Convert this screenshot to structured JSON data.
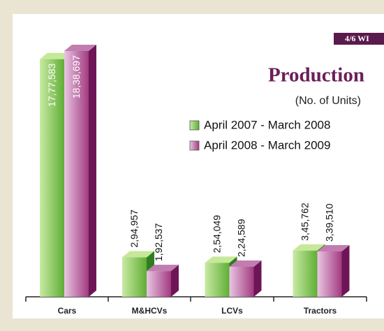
{
  "chart_data": {
    "type": "bar3d",
    "badge": "4/6 WI",
    "title": "Production",
    "subtitle": "(No. of Units)",
    "categories": [
      "Cars",
      "M&HCVs",
      "LCVs",
      "Tractors"
    ],
    "series": [
      {
        "name": "April 2007 - March 2008",
        "color": "#7cc24a",
        "values": [
          1777583,
          294957,
          254049,
          345762
        ],
        "value_labels": [
          "17,77,583",
          "2,94,957",
          "2,54,049",
          "3,45,762"
        ]
      },
      {
        "name": "April 2008 - March 2009",
        "color": "#a8397f",
        "values": [
          1838697,
          192537,
          224589,
          339510
        ],
        "value_labels": [
          "18,38,697",
          "1,92,537",
          "2,24,589",
          "3,39,510"
        ]
      }
    ]
  }
}
